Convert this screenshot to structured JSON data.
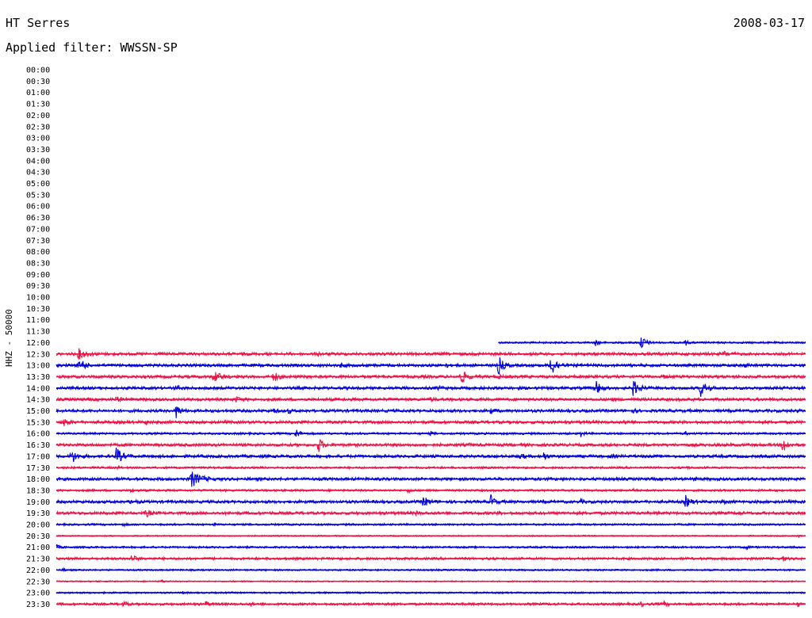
{
  "header": {
    "station": "HT Serres",
    "date": "2008-03-17",
    "filter_label": "Applied filter: WWSSN-SP",
    "channel_label": "HHZ - 50000"
  },
  "colors": {
    "blue": "#0000dd",
    "red": "#ee1144"
  },
  "chart_data": {
    "type": "line",
    "title": "HT Serres",
    "subtitle": "Applied filter: WWSSN-SP",
    "ylabel": "HHZ - 50000",
    "date": "2008-03-17",
    "row_labels": [
      "00:00",
      "00:30",
      "01:00",
      "01:30",
      "02:00",
      "02:30",
      "03:00",
      "03:30",
      "04:00",
      "04:30",
      "05:00",
      "05:30",
      "06:00",
      "06:30",
      "07:00",
      "07:30",
      "08:00",
      "08:30",
      "09:00",
      "09:30",
      "10:00",
      "10:30",
      "11:00",
      "11:30",
      "12:00",
      "12:30",
      "13:00",
      "13:30",
      "14:00",
      "14:30",
      "15:00",
      "15:30",
      "16:00",
      "16:30",
      "17:00",
      "17:30",
      "18:00",
      "18:30",
      "19:00",
      "19:30",
      "20:00",
      "20:30",
      "21:00",
      "21:30",
      "22:00",
      "22:30",
      "23:00",
      "23:30"
    ],
    "row_minutes": 30,
    "data_start_row": "12:00",
    "data_start_fraction": 0.59,
    "traces": [
      {
        "row": "12:00",
        "color": "blue",
        "noise": 1.2,
        "events": [
          [
            0.72,
            4,
            4
          ],
          [
            0.78,
            10,
            5
          ],
          [
            0.84,
            3,
            3
          ]
        ]
      },
      {
        "row": "12:30",
        "color": "red",
        "noise": 1.8,
        "events": [
          [
            0.03,
            6,
            8
          ],
          [
            0.35,
            2,
            2
          ],
          [
            0.89,
            3,
            6
          ]
        ]
      },
      {
        "row": "13:00",
        "color": "blue",
        "noise": 1.8,
        "events": [
          [
            0.03,
            4,
            4
          ],
          [
            0.035,
            6,
            3
          ],
          [
            0.38,
            3,
            2
          ],
          [
            0.52,
            3,
            2
          ],
          [
            0.59,
            12,
            5
          ],
          [
            0.66,
            14,
            6
          ],
          [
            0.92,
            2,
            4
          ]
        ]
      },
      {
        "row": "13:30",
        "color": "red",
        "noise": 1.8,
        "events": [
          [
            0.21,
            7,
            7
          ],
          [
            0.29,
            6,
            5
          ],
          [
            0.54,
            10,
            5
          ],
          [
            0.59,
            3,
            2
          ],
          [
            0.81,
            2,
            3
          ]
        ]
      },
      {
        "row": "14:00",
        "color": "blue",
        "noise": 1.8,
        "events": [
          [
            0.16,
            3,
            4
          ],
          [
            0.51,
            3,
            3
          ],
          [
            0.72,
            9,
            5
          ],
          [
            0.77,
            10,
            6
          ],
          [
            0.86,
            10,
            6
          ]
        ]
      },
      {
        "row": "14:30",
        "color": "red",
        "noise": 1.8,
        "events": [
          [
            0.08,
            3,
            5
          ],
          [
            0.24,
            3,
            4
          ],
          [
            0.5,
            2,
            3
          ],
          [
            0.74,
            2,
            3
          ]
        ]
      },
      {
        "row": "15:00",
        "color": "blue",
        "noise": 1.8,
        "events": [
          [
            0.16,
            9,
            4
          ],
          [
            0.29,
            3,
            3
          ],
          [
            0.31,
            3,
            2
          ],
          [
            0.58,
            4,
            3
          ],
          [
            0.77,
            2,
            3
          ],
          [
            0.99,
            2,
            2
          ]
        ]
      },
      {
        "row": "15:30",
        "color": "red",
        "noise": 1.8,
        "events": [
          [
            0.01,
            5,
            5
          ],
          [
            0.12,
            2,
            4
          ],
          [
            0.76,
            2,
            3
          ]
        ]
      },
      {
        "row": "16:00",
        "color": "blue",
        "noise": 1.3,
        "events": [
          [
            0.32,
            6,
            4
          ],
          [
            0.5,
            2,
            2
          ],
          [
            0.7,
            4,
            3
          ],
          [
            0.84,
            2,
            2
          ]
        ]
      },
      {
        "row": "16:30",
        "color": "red",
        "noise": 1.8,
        "events": [
          [
            0.35,
            10,
            4
          ],
          [
            0.49,
            2,
            2
          ],
          [
            0.55,
            2,
            2
          ],
          [
            0.97,
            12,
            4
          ]
        ]
      },
      {
        "row": "17:00",
        "color": "blue",
        "noise": 1.8,
        "events": [
          [
            0.02,
            10,
            5
          ],
          [
            0.08,
            11,
            6
          ],
          [
            0.62,
            4,
            3
          ],
          [
            0.65,
            6,
            3
          ],
          [
            0.74,
            2,
            3
          ]
        ]
      },
      {
        "row": "17:30",
        "color": "red",
        "noise": 1.3,
        "events": [
          [
            0.08,
            2,
            3
          ],
          [
            0.46,
            2,
            2
          ],
          [
            0.84,
            2,
            3
          ]
        ]
      },
      {
        "row": "18:00",
        "color": "blue",
        "noise": 1.8,
        "events": [
          [
            0.18,
            10,
            10
          ],
          [
            0.85,
            2,
            3
          ]
        ]
      },
      {
        "row": "18:30",
        "color": "red",
        "noise": 1.3,
        "events": [
          [
            0.1,
            3,
            3
          ],
          [
            0.47,
            3,
            3
          ],
          [
            0.77,
            2,
            2
          ]
        ]
      },
      {
        "row": "19:00",
        "color": "blue",
        "noise": 1.8,
        "events": [
          [
            0.1,
            3,
            4
          ],
          [
            0.49,
            7,
            5
          ],
          [
            0.58,
            8,
            4
          ],
          [
            0.7,
            2,
            3
          ],
          [
            0.84,
            7,
            5
          ],
          [
            0.89,
            2,
            3
          ]
        ]
      },
      {
        "row": "19:30",
        "color": "red",
        "noise": 1.8,
        "events": [
          [
            0.12,
            4,
            5
          ],
          [
            0.48,
            2,
            3
          ],
          [
            0.59,
            2,
            2
          ],
          [
            0.91,
            2,
            3
          ]
        ]
      },
      {
        "row": "20:00",
        "color": "blue",
        "noise": 1.2,
        "events": [
          [
            0.09,
            2,
            2
          ],
          [
            0.21,
            2,
            2
          ]
        ]
      },
      {
        "row": "20:30",
        "color": "red",
        "noise": 0.8,
        "events": [
          [
            0.99,
            2,
            2
          ]
        ]
      },
      {
        "row": "21:00",
        "color": "blue",
        "noise": 1.2,
        "events": [
          [
            0.0,
            3,
            3
          ],
          [
            0.92,
            3,
            4
          ]
        ]
      },
      {
        "row": "21:30",
        "color": "red",
        "noise": 1.5,
        "events": [
          [
            0.1,
            4,
            6
          ],
          [
            0.97,
            3,
            3
          ]
        ]
      },
      {
        "row": "22:00",
        "color": "blue",
        "noise": 1.0,
        "events": [
          [
            0.01,
            2,
            2
          ]
        ]
      },
      {
        "row": "22:30",
        "color": "red",
        "noise": 0.8,
        "events": [
          [
            0.14,
            2,
            3
          ]
        ]
      },
      {
        "row": "23:00",
        "color": "blue",
        "noise": 1.0,
        "events": [
          [
            0.17,
            2,
            2
          ]
        ]
      },
      {
        "row": "23:30",
        "color": "red",
        "noise": 1.5,
        "events": [
          [
            0.09,
            4,
            3
          ],
          [
            0.2,
            4,
            3
          ],
          [
            0.26,
            2,
            2
          ],
          [
            0.44,
            2,
            2
          ],
          [
            0.78,
            3,
            3
          ],
          [
            0.81,
            3,
            3
          ],
          [
            0.99,
            3,
            2
          ]
        ]
      }
    ]
  }
}
